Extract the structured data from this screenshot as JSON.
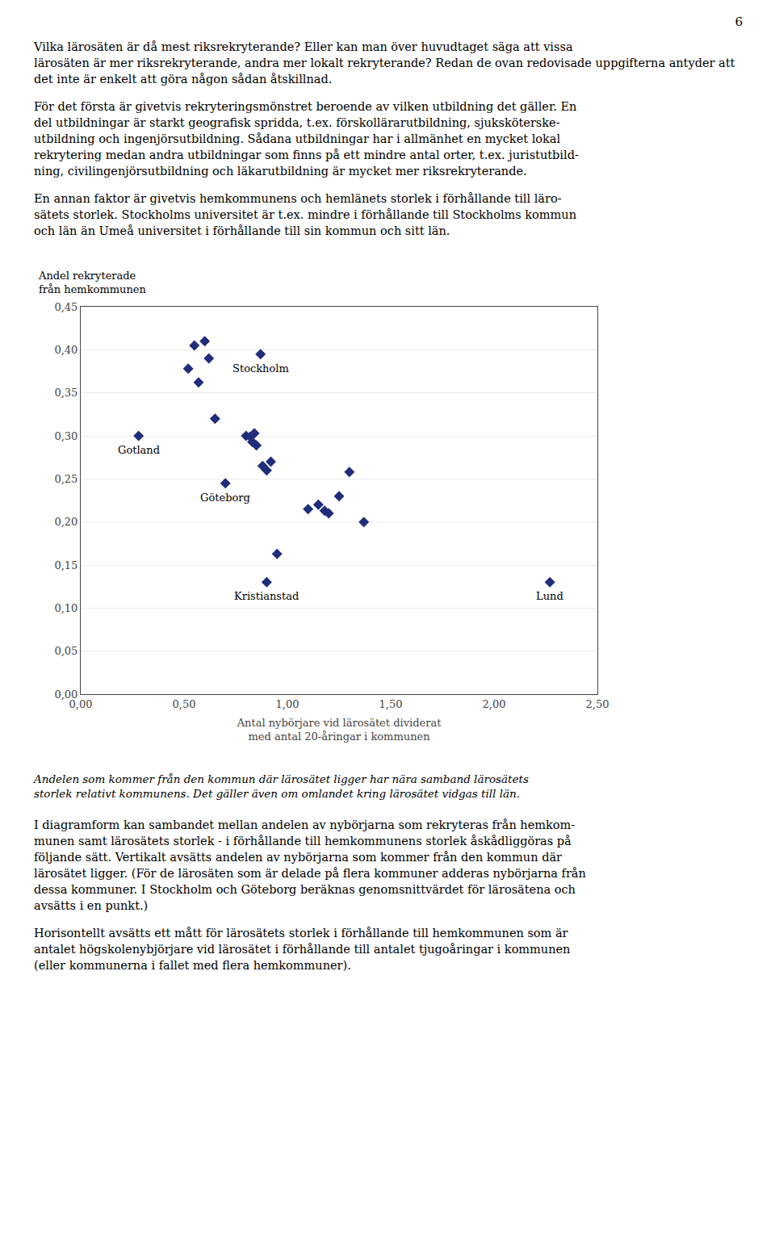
{
  "page_number": "6",
  "text_before": [
    [
      "Vilka lärosäten är då mest riksrekryterande? Eller kan man över huvudtaget säga att vissa",
      "lärosäten är mer riksrekryterande, andra mer lokalt rekryterande? Redan de ovan redovisade uppgifterna antyder att det inte är enkelt att göra någon sådan åtskillnad."
    ],
    [
      "För det första är givetvis rekryteringsmönstret beroende av vilken utbildning det gäller. En",
      "del utbildningar är starkt geografisk spridda, t.ex. förskollärarutbildning, sjuksköterske-",
      "utbildning och ingenjörsutbildning. Sådana utbildningar har i allmänhet en mycket lokal",
      "rekrytering medan andra utbildningar som finns på ett mindre antal orter, t.ex. juristutbild-",
      "ning, civilingenjörsutbildning och läkarutbildning är mycket mer riksrekryterande."
    ],
    [
      "En annan faktor är givetvis hemkommunens och hemlänets storlek i förhållande till läro-",
      "sätets storlek. Stockholms universitet är t.ex. mindre i förhållande till Stockholms kommun",
      "och län än Umeå universitet i förhållande till sin kommun och sitt län."
    ]
  ],
  "chart_data": {
    "type": "scatter",
    "ylabel": "Andel rekryterade\nfrån hemkommunen",
    "xlabel": "Antal nybörjare vid lärosätet dividerat\nmed antal 20-åringar i kommunen",
    "x": [
      0.28,
      0.52,
      0.55,
      0.57,
      0.6,
      0.62,
      0.65,
      0.7,
      0.8,
      0.82,
      0.83,
      0.84,
      0.85,
      0.87,
      0.88,
      0.9,
      0.92,
      0.95,
      1.1,
      1.15,
      1.18,
      1.2,
      1.25,
      1.3,
      1.37,
      0.9,
      2.27
    ],
    "values": [
      0.3,
      0.378,
      0.405,
      0.362,
      0.41,
      0.39,
      0.32,
      0.245,
      0.3,
      0.299,
      0.293,
      0.303,
      0.289,
      0.395,
      0.265,
      0.26,
      0.27,
      0.163,
      0.215,
      0.22,
      0.213,
      0.21,
      0.23,
      0.258,
      0.2,
      0.13,
      0.13
    ],
    "color": "#1f2d7b",
    "marker": "diamond",
    "annotations": [
      {
        "x": 0.28,
        "y": 0.3,
        "text": "Gotland"
      },
      {
        "x": 0.7,
        "y": 0.245,
        "text": "Göteborg"
      },
      {
        "x": 0.87,
        "y": 0.395,
        "text": "Stockholm"
      },
      {
        "x": 0.9,
        "y": 0.13,
        "text": "Kristianstad"
      },
      {
        "x": 2.27,
        "y": 0.13,
        "text": "Lund"
      }
    ],
    "xlim": [
      0.0,
      2.5
    ],
    "ylim": [
      0.0,
      0.45
    ],
    "xticks": [
      {
        "value": 0.0,
        "label": "0,00"
      },
      {
        "value": 0.5,
        "label": "0,50"
      },
      {
        "value": 1.0,
        "label": "1,00"
      },
      {
        "value": 1.5,
        "label": "1,50"
      },
      {
        "value": 2.0,
        "label": "2,00"
      },
      {
        "value": 2.5,
        "label": "2,50"
      }
    ],
    "yticks": [
      {
        "value": 0.0,
        "label": "0,00"
      },
      {
        "value": 0.05,
        "label": "0,05"
      },
      {
        "value": 0.1,
        "label": "0,10"
      },
      {
        "value": 0.15,
        "label": "0,15"
      },
      {
        "value": 0.2,
        "label": "0,20"
      },
      {
        "value": 0.25,
        "label": "0,25"
      },
      {
        "value": 0.3,
        "label": "0,30"
      },
      {
        "value": 0.35,
        "label": "0,35"
      },
      {
        "value": 0.4,
        "label": "0,40"
      },
      {
        "value": 0.45,
        "label": "0,45"
      }
    ],
    "grid": "y"
  },
  "caption": [
    "Andelen som kommer från den kommun där lärosätet ligger har nära samband lärosätets",
    "storlek relativt kommunens. Det gäller även om omlandet kring lärosätet vidgas till län."
  ],
  "text_after": [
    [
      "I diagramform kan sambandet mellan andelen av nybörjarna som rekryteras från hemkom-",
      "munen samt lärosätets storlek - i förhållande till hemkommunens storlek åskådliggöras på",
      "följande sätt. Vertikalt avsätts andelen av nybörjarna som kommer från den kommun där",
      "lärosätet ligger. (För de lärosäten som är delade på flera kommuner adderas nybörjarna från",
      "dessa kommuner. I Stockholm och Göteborg beräknas genomsnittvärdet för lärosätena och",
      "avsätts i en punkt.)"
    ],
    [
      "Horisontellt avsätts ett mått för lärosätets storlek i förhållande till hemkommunen som är",
      "antalet högskolenybjörjare vid lärosätet i förhållande till antalet tjugoåringar i kommunen",
      "(eller kommunerna i fallet med flera hemkommuner)."
    ]
  ]
}
